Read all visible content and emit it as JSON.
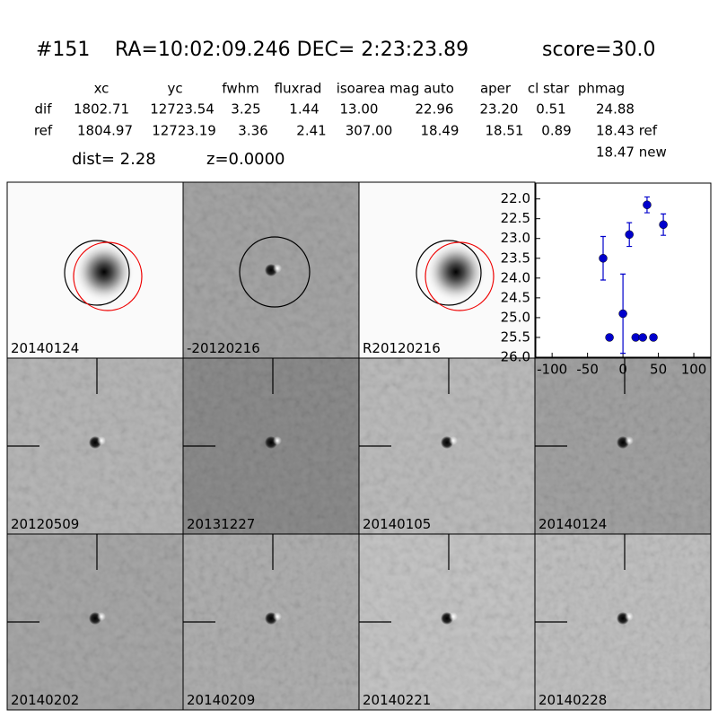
{
  "header": {
    "id": "#151",
    "coords": "RA=10:02:09.246 DEC= 2:23:23.89",
    "score": "score=30.0"
  },
  "table": {
    "columns": [
      "xc",
      "yc",
      "fwhm",
      "fluxrad",
      "isoarea",
      "mag auto",
      "aper",
      "cl star",
      "phmag"
    ],
    "rows": [
      [
        "dif",
        "1802.71",
        "12723.54",
        "3.25",
        "1.44",
        "13.00",
        "22.96",
        "23.20",
        "0.51",
        "24.88"
      ],
      [
        "ref",
        "1804.97",
        "12723.19",
        "3.36",
        "2.41",
        "307.00",
        "18.49",
        "18.51",
        "0.89",
        "18.43 ref"
      ]
    ],
    "extra": "18.47 new"
  },
  "info": {
    "dist": "dist=  2.28",
    "z": "z=0.0000"
  },
  "panels": [
    {
      "label": "20140124"
    },
    {
      "label": "-20120216"
    },
    {
      "label": "R20120216"
    },
    {
      "label": "20120509"
    },
    {
      "label": "20131227"
    },
    {
      "label": "20140105"
    },
    {
      "label": "20140124",
      "color": "#ff0000"
    },
    {
      "label": "20140202"
    },
    {
      "label": "20140209"
    },
    {
      "label": "20140221"
    },
    {
      "label": "20140228"
    }
  ],
  "chart_data": {
    "type": "scatter",
    "x": [
      -28,
      -19,
      0,
      9,
      18,
      28,
      34,
      43,
      57
    ],
    "series": [
      {
        "color": "#0000cc",
        "values": [
          23.5,
          25.5,
          24.9,
          22.9,
          25.5,
          25.5,
          22.15,
          25.5,
          22.65
        ],
        "yerr": [
          0.55,
          0.05,
          1.0,
          0.3,
          0.05,
          0.05,
          0.2,
          0.05,
          0.27
        ]
      }
    ],
    "xlim": [
      -123,
      124
    ],
    "xticks": [
      -100,
      -50,
      0,
      50,
      100
    ],
    "ylim": [
      26.0,
      21.6
    ],
    "yticks": [
      {
        "value": 22.0,
        "label": "22.0"
      },
      {
        "value": 22.5,
        "label": "22.5"
      },
      {
        "value": 23.0,
        "label": "23.0"
      },
      {
        "value": 23.5,
        "label": "23.5"
      },
      {
        "value": 24.0,
        "label": "24.0"
      },
      {
        "value": 24.5,
        "label": "24.5"
      },
      {
        "value": 25.0,
        "label": "25.0"
      },
      {
        "value": 25.5,
        "label": "25.5"
      },
      {
        "value": 26.0,
        "label": "26.0"
      }
    ]
  }
}
